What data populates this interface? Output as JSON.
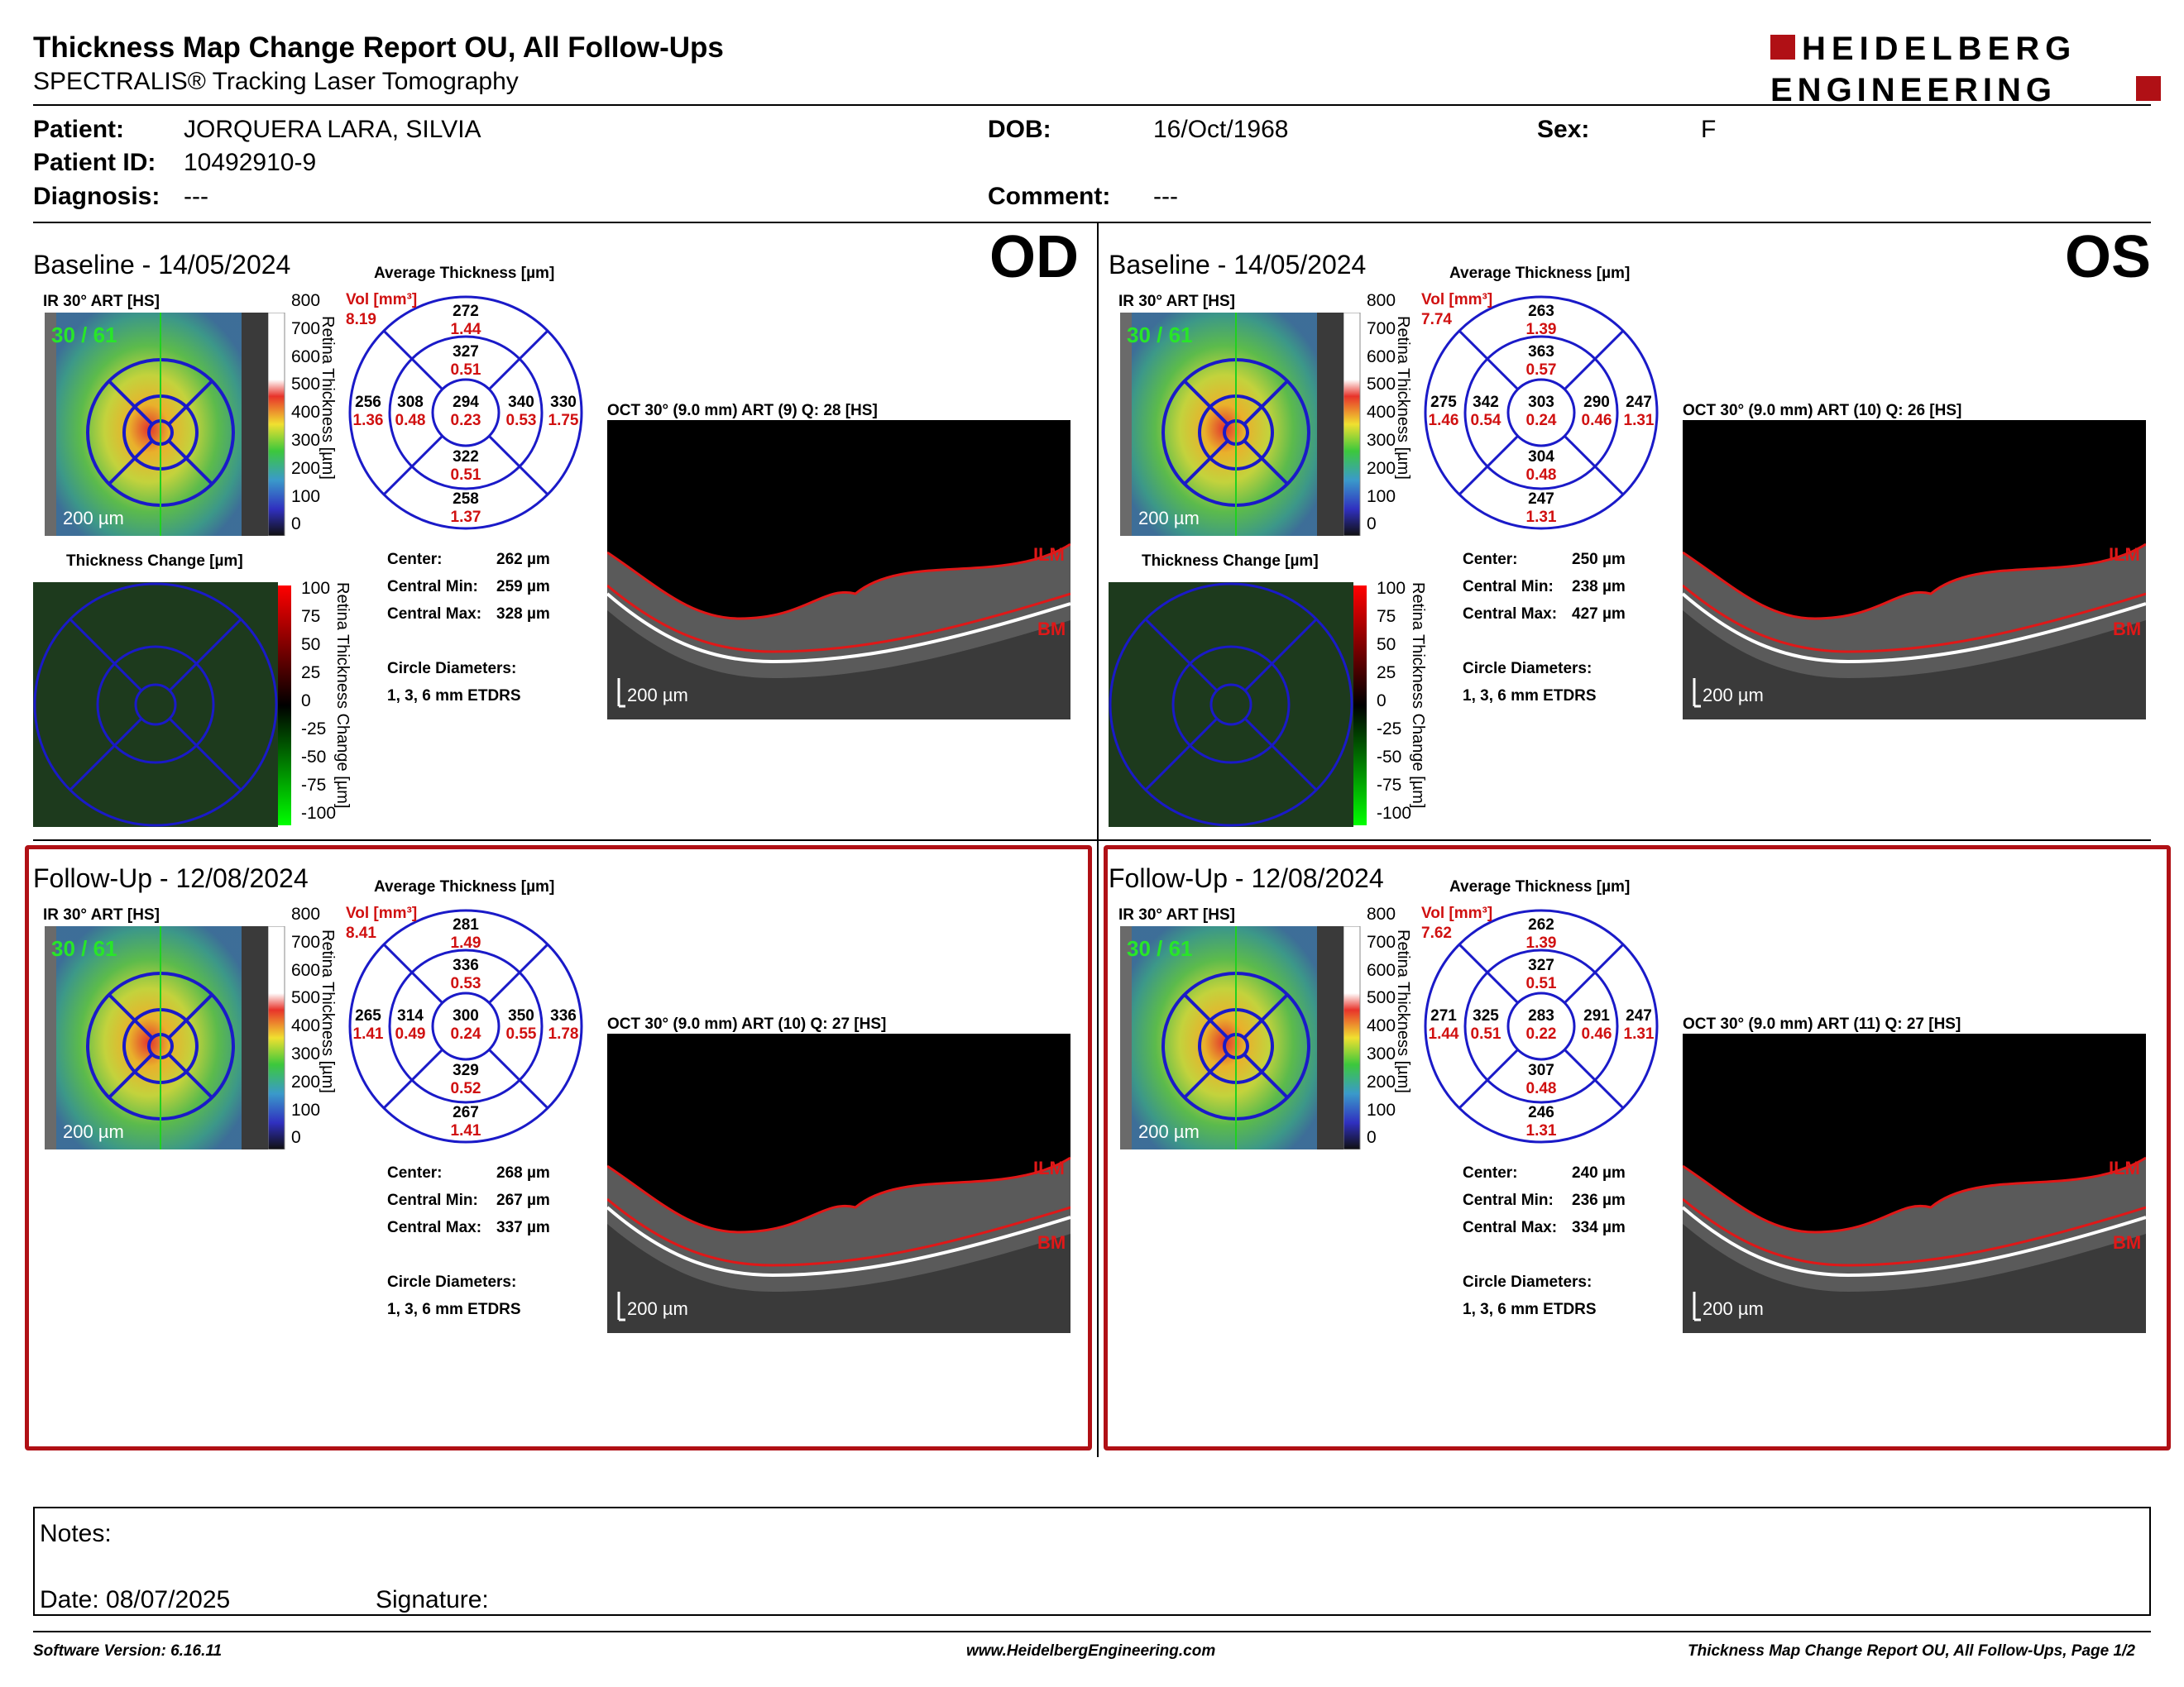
{
  "header": {
    "title": "Thickness Map Change Report OU, All Follow-Ups",
    "subtitle": "SPECTRALIS® Tracking Laser Tomography",
    "logo_line1": "HEIDELBERG",
    "logo_line2": "ENGINEERING",
    "brand_color": "#b01015"
  },
  "patient": {
    "patient_label": "Patient:",
    "patient_value": "JORQUERA LARA, SILVIA",
    "dob_label": "DOB:",
    "dob_value": "16/Oct/1968",
    "sex_label": "Sex:",
    "sex_value": "F",
    "id_label": "Patient ID:",
    "id_value": "10492910-9",
    "diagnosis_label": "Diagnosis:",
    "diagnosis_value": "---",
    "comment_label": "Comment:",
    "comment_value": "---"
  },
  "common": {
    "ir_label": "IR 30° ART [HS]",
    "avg_label": "Average Thickness [µm]",
    "vol_label": "Vol [mm³]",
    "change_label": "Thickness Change [µm]",
    "center_label": "Center:",
    "cmin_label": "Central Min:",
    "cmax_label": "Central Max:",
    "circle_label": "Circle Diameters:",
    "circle_value": "1, 3, 6 mm ETDRS",
    "scale_200": "200 µm",
    "fixation": "30 / 61",
    "thick_axis": "Retina Thickness [µm]",
    "change_axis": "Retina Thickness Change [µm]",
    "thick_ticks": [
      "800",
      "700",
      "600",
      "500",
      "400",
      "300",
      "200",
      "100",
      "0"
    ],
    "change_ticks": [
      "100",
      "75",
      "50",
      "25",
      "0",
      "-25",
      "-50",
      "-75",
      "-100"
    ],
    "ilm": "ILM",
    "bm": "BM"
  },
  "panels": {
    "od_base": {
      "section": "Baseline - 14/05/2024",
      "eye": "OD",
      "oct_label": "OCT 30° (9.0 mm) ART (9) Q: 28 [HS]",
      "vol": "8.19",
      "etdrs": {
        "outer_sup": "272",
        "outer_sup_v": "1.44",
        "inner_sup": "327",
        "inner_sup_v": "0.51",
        "outer_left": "256",
        "outer_left_v": "1.36",
        "inner_left": "308",
        "inner_left_v": "0.48",
        "center": "294",
        "center_v": "0.23",
        "inner_right": "340",
        "inner_right_v": "0.53",
        "outer_right": "330",
        "outer_right_v": "1.75",
        "inner_inf": "322",
        "inner_inf_v": "0.51",
        "outer_inf": "258",
        "outer_inf_v": "1.37"
      },
      "center_value": "262 µm",
      "cmin_value": "259 µm",
      "cmax_value": "328 µm"
    },
    "os_base": {
      "section": "Baseline - 14/05/2024",
      "eye": "OS",
      "oct_label": "OCT 30° (9.0 mm) ART (10) Q: 26 [HS]",
      "vol": "7.74",
      "etdrs": {
        "outer_sup": "263",
        "outer_sup_v": "1.39",
        "inner_sup": "363",
        "inner_sup_v": "0.57",
        "outer_left": "275",
        "outer_left_v": "1.46",
        "inner_left": "342",
        "inner_left_v": "0.54",
        "center": "303",
        "center_v": "0.24",
        "inner_right": "290",
        "inner_right_v": "0.46",
        "outer_right": "247",
        "outer_right_v": "1.31",
        "inner_inf": "304",
        "inner_inf_v": "0.48",
        "outer_inf": "247",
        "outer_inf_v": "1.31"
      },
      "center_value": "250 µm",
      "cmin_value": "238 µm",
      "cmax_value": "427 µm"
    },
    "od_fu": {
      "section": "Follow-Up - 12/08/2024",
      "oct_label": "OCT 30° (9.0 mm) ART (10) Q: 27 [HS]",
      "vol": "8.41",
      "etdrs": {
        "outer_sup": "281",
        "outer_sup_v": "1.49",
        "inner_sup": "336",
        "inner_sup_v": "0.53",
        "outer_left": "265",
        "outer_left_v": "1.41",
        "inner_left": "314",
        "inner_left_v": "0.49",
        "center": "300",
        "center_v": "0.24",
        "inner_right": "350",
        "inner_right_v": "0.55",
        "outer_right": "336",
        "outer_right_v": "1.78",
        "inner_inf": "329",
        "inner_inf_v": "0.52",
        "outer_inf": "267",
        "outer_inf_v": "1.41"
      },
      "center_value": "268 µm",
      "cmin_value": "267 µm",
      "cmax_value": "337 µm"
    },
    "os_fu": {
      "section": "Follow-Up - 12/08/2024",
      "oct_label": "OCT 30° (9.0 mm) ART (11) Q: 27 [HS]",
      "vol": "7.62",
      "etdrs": {
        "outer_sup": "262",
        "outer_sup_v": "1.39",
        "inner_sup": "327",
        "inner_sup_v": "0.51",
        "outer_left": "271",
        "outer_left_v": "1.44",
        "inner_left": "325",
        "inner_left_v": "0.51",
        "center": "283",
        "center_v": "0.22",
        "inner_right": "291",
        "inner_right_v": "0.46",
        "outer_right": "247",
        "outer_right_v": "1.31",
        "inner_inf": "307",
        "inner_inf_v": "0.48",
        "outer_inf": "246",
        "outer_inf_v": "1.31"
      },
      "center_value": "240 µm",
      "cmin_value": "236 µm",
      "cmax_value": "334 µm"
    }
  },
  "notes": {
    "notes_label": "Notes:",
    "date_label": "Date: 08/07/2025",
    "signature_label": "Signature:"
  },
  "footer": {
    "software": "Software Version: 6.16.11",
    "website": "www.HeidelbergEngineering.com",
    "page": "Thickness Map Change Report OU, All Follow-Ups, Page 1/2"
  }
}
